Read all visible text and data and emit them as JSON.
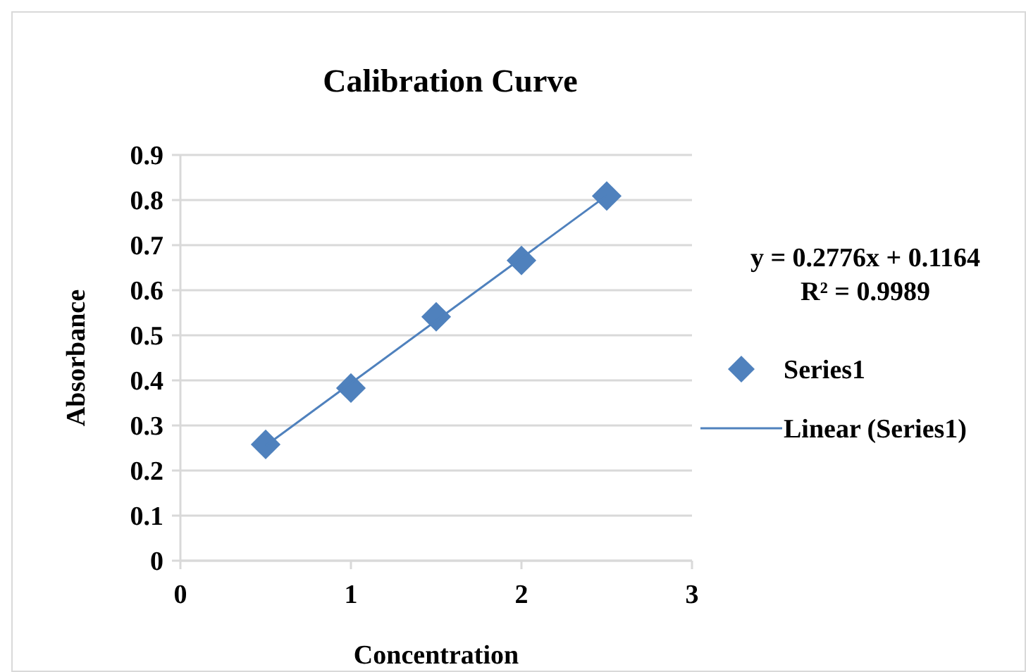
{
  "chart_data": {
    "type": "scatter",
    "title": "Calibration Curve",
    "xlabel": "Concentration",
    "ylabel": "Absorbance",
    "series": [
      {
        "name": "Series1",
        "color": "#4f81bd",
        "marker": "diamond",
        "x": [
          0.5,
          1,
          1.5,
          2,
          2.5
        ],
        "values": [
          0.258,
          0.383,
          0.541,
          0.666,
          0.809
        ]
      },
      {
        "name": "Linear (Series1)",
        "type": "line",
        "color": "#4f81bd",
        "marker": "none",
        "line_style": "solid",
        "x": [
          0.5,
          2.5
        ],
        "values": [
          0.255,
          0.81
        ]
      }
    ],
    "xlim": [
      0,
      3
    ],
    "xticks": [
      0,
      1,
      2,
      3
    ],
    "ylim": [
      0,
      0.9
    ],
    "yticks": [
      0,
      0.1,
      0.2,
      0.3,
      0.4,
      0.5,
      0.6,
      0.7,
      0.8,
      0.9
    ],
    "grid": "y",
    "legend": "right",
    "annotations": [
      "y = 0.2776x + 0.1164",
      "R² = 0.9989"
    ]
  }
}
